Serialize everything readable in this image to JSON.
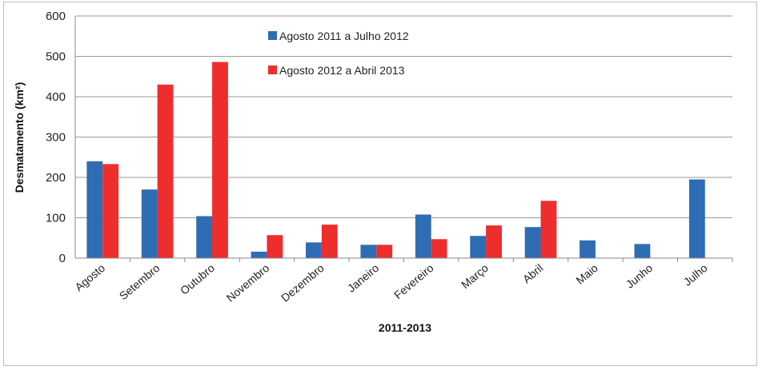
{
  "chart_data": {
    "type": "bar",
    "xlabel": "2011-2013",
    "ylabel": "Desmatamento (km²)",
    "ylim": [
      0,
      600
    ],
    "yticks": [
      0,
      100,
      200,
      300,
      400,
      500,
      600
    ],
    "grid": true,
    "legend_position": "top-center",
    "categories": [
      "Agosto",
      "Setembro",
      "Outubro",
      "Novembro",
      "Dezembro",
      "Janeiro",
      "Fevereiro",
      "Março",
      "Abril",
      "Maio",
      "Junho",
      "Julho"
    ],
    "series": [
      {
        "name": "Agosto 2011 a Julho 2012",
        "color": "#2e6db4",
        "values": [
          240,
          170,
          104,
          16,
          39,
          33,
          108,
          55,
          77,
          44,
          35,
          195
        ]
      },
      {
        "name": "Agosto 2012 a Abril 2013",
        "color": "#ee2d2d",
        "values": [
          233,
          430,
          486,
          57,
          83,
          33,
          47,
          81,
          142,
          null,
          null,
          null
        ]
      }
    ]
  }
}
